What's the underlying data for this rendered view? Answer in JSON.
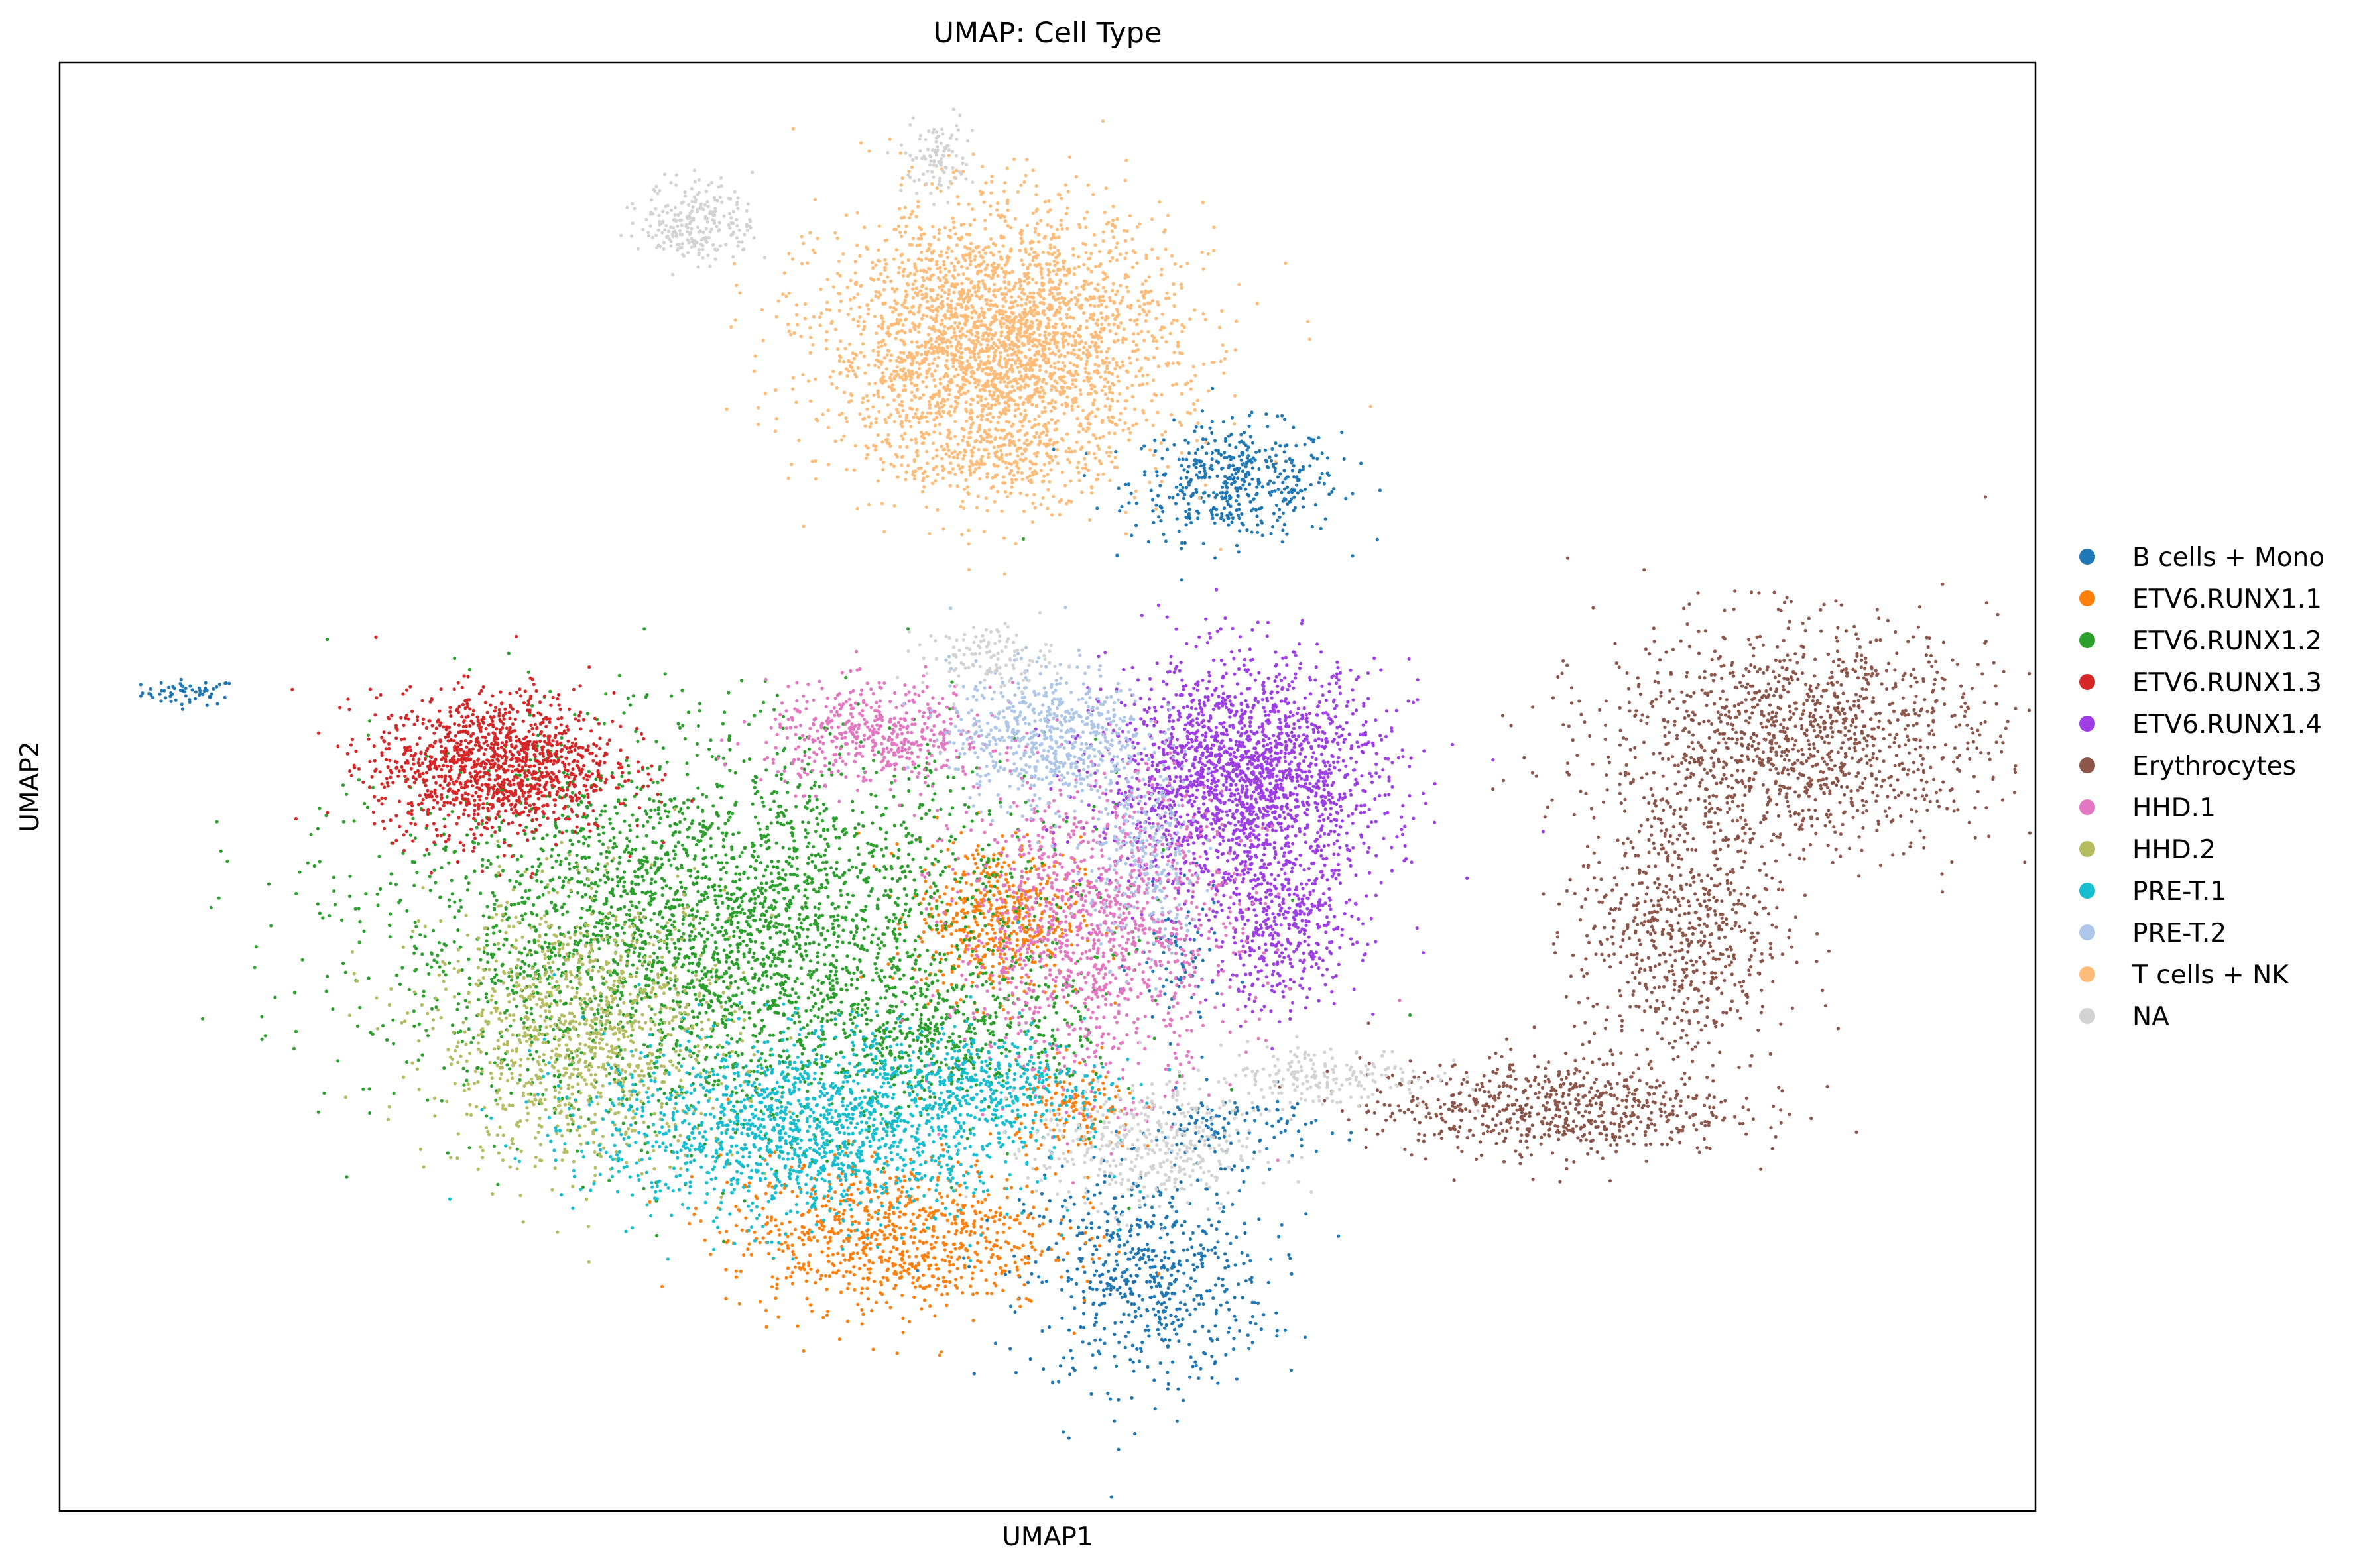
{
  "chart_data": {
    "type": "scatter",
    "title": "UMAP: Cell Type",
    "xlabel": "UMAP1",
    "ylabel": "UMAP2",
    "xlim": [
      0,
      100
    ],
    "ylim": [
      0,
      100
    ],
    "grid": false,
    "ticks": false,
    "legend_placement": "right-outside",
    "series": [
      {
        "name": "B cells + Mono",
        "color": "#1f77b4",
        "clusters": [
          {
            "cx": 6.6,
            "cy": 56.5,
            "rx": 2.2,
            "ry": 0.8,
            "n": 60
          },
          {
            "cx": 59.5,
            "cy": 71.0,
            "rx": 4.8,
            "ry": 3.6,
            "n": 460
          },
          {
            "cx": 55.0,
            "cy": 16.0,
            "rx": 5.6,
            "ry": 6.8,
            "n": 620
          },
          {
            "cx": 59.0,
            "cy": 26.5,
            "rx": 4.2,
            "ry": 2.2,
            "n": 120
          },
          {
            "cx": 56.6,
            "cy": 37.5,
            "rx": 2.0,
            "ry": 4.5,
            "n": 80
          }
        ]
      },
      {
        "name": "ETV6.RUNX1.1",
        "color": "#ff7f0e",
        "clusters": [
          {
            "cx": 47.5,
            "cy": 41.0,
            "rx": 3.8,
            "ry": 5.0,
            "n": 520
          },
          {
            "cx": 42.0,
            "cy": 19.0,
            "rx": 7.5,
            "ry": 4.8,
            "n": 850
          },
          {
            "cx": 51.5,
            "cy": 27.5,
            "rx": 2.8,
            "ry": 3.0,
            "n": 150
          }
        ]
      },
      {
        "name": "ETV6.RUNX1.2",
        "color": "#2ca02c",
        "clusters": [
          {
            "cx": 33.0,
            "cy": 40.0,
            "rx": 15.0,
            "ry": 11.5,
            "n": 3400
          },
          {
            "cx": 45.0,
            "cy": 33.0,
            "rx": 7.0,
            "ry": 4.0,
            "n": 380
          }
        ]
      },
      {
        "name": "ETV6.RUNX1.3",
        "color": "#d62728",
        "clusters": [
          {
            "cx": 22.0,
            "cy": 51.5,
            "rx": 5.5,
            "ry": 4.5,
            "n": 1300
          }
        ]
      },
      {
        "name": "ETV6.RUNX1.4",
        "color": "#9e3fe6",
        "clusters": [
          {
            "cx": 60.0,
            "cy": 50.5,
            "rx": 6.4,
            "ry": 7.2,
            "n": 2100
          },
          {
            "cx": 62.0,
            "cy": 40.0,
            "rx": 3.4,
            "ry": 5.0,
            "n": 400
          }
        ]
      },
      {
        "name": "Erythrocytes",
        "color": "#8c564b",
        "clusters": [
          {
            "cx": 88.0,
            "cy": 53.5,
            "rx": 9.0,
            "ry": 7.0,
            "n": 1300
          },
          {
            "cx": 82.0,
            "cy": 40.0,
            "rx": 4.8,
            "ry": 9.0,
            "n": 700
          },
          {
            "cx": 75.5,
            "cy": 27.8,
            "rx": 8.5,
            "ry": 3.0,
            "n": 650
          }
        ]
      },
      {
        "name": "HHD.1",
        "color": "#e377c2",
        "clusters": [
          {
            "cx": 41.5,
            "cy": 53.5,
            "rx": 5.2,
            "ry": 3.2,
            "n": 500
          },
          {
            "cx": 52.5,
            "cy": 40.0,
            "rx": 6.5,
            "ry": 9.5,
            "n": 1200
          }
        ]
      },
      {
        "name": "HHD.2",
        "color": "#b5bd61",
        "clusters": [
          {
            "cx": 26.5,
            "cy": 33.0,
            "rx": 7.0,
            "ry": 8.5,
            "n": 1100
          }
        ]
      },
      {
        "name": "PRE-T.1",
        "color": "#17becf",
        "clusters": [
          {
            "cx": 38.0,
            "cy": 26.5,
            "rx": 10.0,
            "ry": 6.0,
            "n": 1600
          },
          {
            "cx": 47.5,
            "cy": 29.5,
            "rx": 5.0,
            "ry": 3.0,
            "n": 300
          }
        ]
      },
      {
        "name": "PRE-T.2",
        "color": "#aec7e8",
        "clusters": [
          {
            "cx": 50.0,
            "cy": 53.5,
            "rx": 4.5,
            "ry": 4.5,
            "n": 650
          },
          {
            "cx": 55.0,
            "cy": 45.0,
            "rx": 2.5,
            "ry": 6.0,
            "n": 250
          }
        ]
      },
      {
        "name": "T cells + NK",
        "color": "#ffbb78",
        "clusters": [
          {
            "cx": 47.5,
            "cy": 80.5,
            "rx": 8.0,
            "ry": 8.5,
            "n": 3100
          },
          {
            "cx": 47.2,
            "cy": 72.5,
            "rx": 4.0,
            "ry": 2.0,
            "n": 150
          }
        ]
      },
      {
        "name": "NA",
        "color": "#d3d3d3",
        "clusters": [
          {
            "cx": 32.3,
            "cy": 89.0,
            "rx": 2.6,
            "ry": 2.6,
            "n": 250
          },
          {
            "cx": 44.5,
            "cy": 93.5,
            "rx": 1.6,
            "ry": 2.5,
            "n": 100
          },
          {
            "cx": 55.0,
            "cy": 25.0,
            "rx": 5.0,
            "ry": 4.0,
            "n": 400
          },
          {
            "cx": 64.0,
            "cy": 30.0,
            "rx": 5.0,
            "ry": 2.0,
            "n": 200
          },
          {
            "cx": 47.0,
            "cy": 59.0,
            "rx": 3.0,
            "ry": 2.0,
            "n": 120
          }
        ]
      }
    ]
  }
}
